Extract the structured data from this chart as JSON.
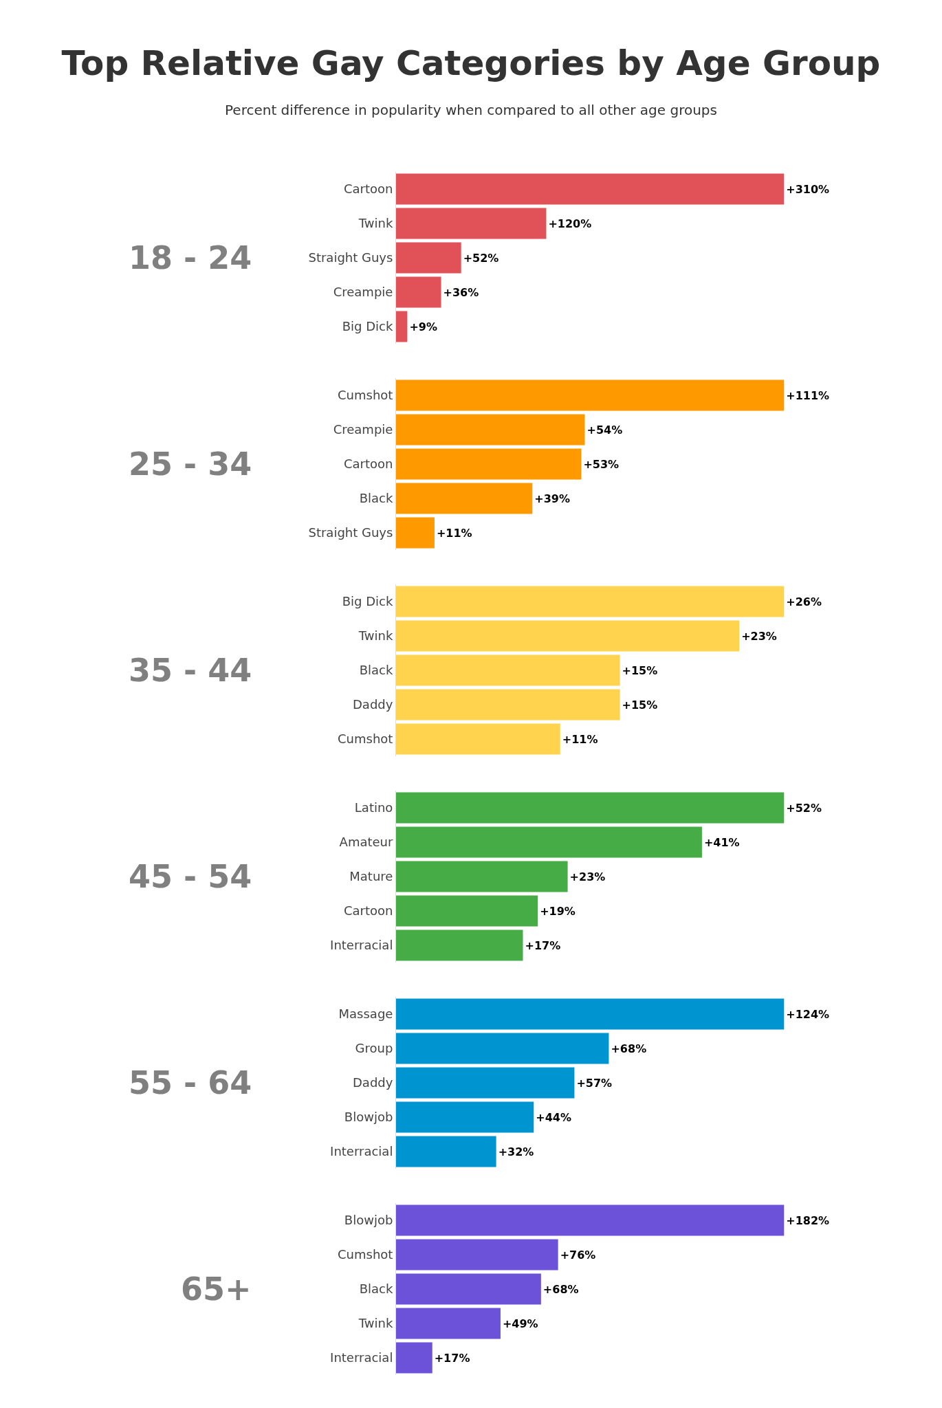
{
  "chart_data": [
    {
      "type": "bar",
      "orientation": "horizontal",
      "title": "Top Relative Gay Categories by Age Group",
      "subtitle": "Percent difference in popularity when compared to all other age groups",
      "ylabel": "18 - 24",
      "categories": [
        "Cartoon",
        "Twink",
        "Straight Guys",
        "Creampie",
        "Big Dick"
      ],
      "values": [
        310,
        120,
        52,
        36,
        9
      ],
      "value_labels": [
        "+310%",
        "+120%",
        "+52%",
        "+36%",
        "+9%"
      ],
      "color": "#e05158",
      "grid": false,
      "legend": false
    },
    {
      "type": "bar",
      "orientation": "horizontal",
      "ylabel": "25 - 34",
      "categories": [
        "Cumshot",
        "Creampie",
        "Cartoon",
        "Black",
        "Straight Guys"
      ],
      "values": [
        111,
        54,
        53,
        39,
        11
      ],
      "value_labels": [
        "+111%",
        "+54%",
        "+53%",
        "+39%",
        "+11%"
      ],
      "color": "#ff9900",
      "grid": false,
      "legend": false
    },
    {
      "type": "bar",
      "orientation": "horizontal",
      "ylabel": "35 - 44",
      "categories": [
        "Big Dick",
        "Twink",
        "Black",
        "Daddy",
        "Cumshot"
      ],
      "values": [
        26,
        23,
        15,
        15,
        11
      ],
      "value_labels": [
        "+26%",
        "+23%",
        "+15%",
        "+15%",
        "+11%"
      ],
      "color": "#ffd34d",
      "grid": false,
      "legend": false
    },
    {
      "type": "bar",
      "orientation": "horizontal",
      "ylabel": "45 - 54",
      "categories": [
        "Latino",
        "Amateur",
        "Mature",
        "Cartoon",
        "Interracial"
      ],
      "values": [
        52,
        41,
        23,
        19,
        17
      ],
      "value_labels": [
        "+52%",
        "+41%",
        "+23%",
        "+19%",
        "+17%"
      ],
      "color": "#46ac46",
      "grid": false,
      "legend": false
    },
    {
      "type": "bar",
      "orientation": "horizontal",
      "ylabel": "55 - 64",
      "categories": [
        "Massage",
        "Group",
        "Daddy",
        "Blowjob",
        "Interracial"
      ],
      "values": [
        124,
        68,
        57,
        44,
        32
      ],
      "value_labels": [
        "+124%",
        "+68%",
        "+57%",
        "+44%",
        "+32%"
      ],
      "color": "#0094d1",
      "grid": false,
      "legend": false
    },
    {
      "type": "bar",
      "orientation": "horizontal",
      "ylabel": "65+",
      "categories": [
        "Blowjob",
        "Cumshot",
        "Black",
        "Twink",
        "Interracial"
      ],
      "values": [
        182,
        76,
        68,
        49,
        17
      ],
      "value_labels": [
        "+182%",
        "+76%",
        "+68%",
        "+49%",
        "+17%"
      ],
      "color": "#6b52d9",
      "grid": false,
      "legend": false
    }
  ]
}
